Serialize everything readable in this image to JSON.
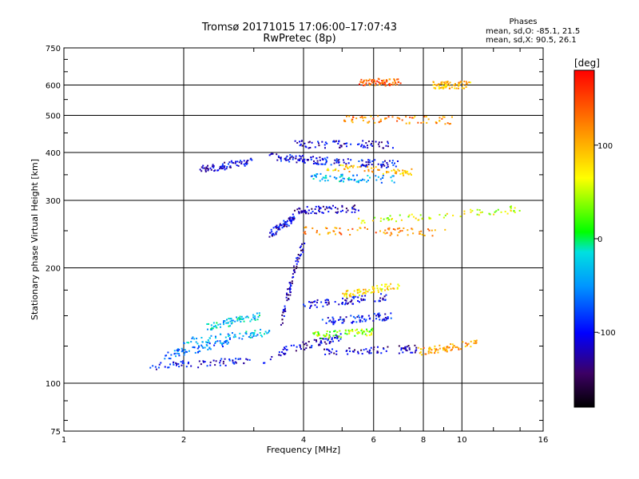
{
  "header": {
    "title_line1": "Tromsø 20171015 17:06:00–17:07:43",
    "title_line2": "RwPretec (8p)"
  },
  "stats": {
    "heading": "Phases",
    "line_o": "mean, sd,O: -85.1, 21.5",
    "line_x": "mean, sd,X:  90.5, 26.1"
  },
  "colorbar": {
    "unit_label": "[deg]",
    "ticks": [
      {
        "value": 100,
        "label": "100"
      },
      {
        "value": 0,
        "label": "0"
      },
      {
        "value": -100,
        "label": "-100"
      }
    ],
    "range": [
      -180,
      180
    ]
  },
  "chart_data": {
    "type": "scatter",
    "xlabel": "Frequency [MHz]",
    "ylabel": "Stationary phase Virtual Height [km]",
    "xscale": "log",
    "yscale": "log",
    "xlim": [
      1,
      16
    ],
    "ylim": [
      75,
      750
    ],
    "xticks": [
      {
        "value": 1,
        "label": "1"
      },
      {
        "value": 2,
        "label": "2"
      },
      {
        "value": 4,
        "label": "4"
      },
      {
        "value": 6,
        "label": "6"
      },
      {
        "value": 8,
        "label": "8"
      },
      {
        "value": 10,
        "label": "10"
      },
      {
        "value": 16,
        "label": "16"
      }
    ],
    "yticks": [
      {
        "value": 75,
        "label": "75"
      },
      {
        "value": 100,
        "label": "100"
      },
      {
        "value": 200,
        "label": "200"
      },
      {
        "value": 300,
        "label": "300"
      },
      {
        "value": 400,
        "label": "400"
      },
      {
        "value": 500,
        "label": "500"
      },
      {
        "value": 600,
        "label": "600"
      },
      {
        "value": 750,
        "label": "750"
      }
    ],
    "grid": true,
    "color_encodes": "phase [deg]",
    "clusters": [
      {
        "x_range": [
          1.6,
          3.4
        ],
        "y_start": 110,
        "y_end": 116,
        "phase": -105
      },
      {
        "x_range": [
          2.0,
          3.3
        ],
        "y_start": 128,
        "y_end": 136,
        "phase": -40
      },
      {
        "x_range": [
          1.8,
          2.6
        ],
        "y_start": 118,
        "y_end": 128,
        "phase": -60
      },
      {
        "x_range": [
          2.3,
          3.1
        ],
        "y_start": 140,
        "y_end": 150,
        "phase": -30
      },
      {
        "x_range": [
          3.4,
          5.0
        ],
        "y_start": 120,
        "y_end": 132,
        "phase": -110
      },
      {
        "x_range": [
          3.5,
          4.0
        ],
        "y_start": 140,
        "y_end": 230,
        "phase": -120
      },
      {
        "x_range": [
          4.0,
          6.5
        ],
        "y_start": 160,
        "y_end": 168,
        "phase": -110
      },
      {
        "x_range": [
          4.5,
          6.8
        ],
        "y_start": 145,
        "y_end": 150,
        "phase": -100
      },
      {
        "x_range": [
          4.2,
          6.0
        ],
        "y_start": 133,
        "y_end": 136,
        "phase": 40
      },
      {
        "x_range": [
          4.5,
          7.8
        ],
        "y_start": 120,
        "y_end": 123,
        "phase": -120
      },
      {
        "x_range": [
          7.8,
          11.0
        ],
        "y_start": 121,
        "y_end": 127,
        "phase": 110
      },
      {
        "x_range": [
          5.0,
          7.0
        ],
        "y_start": 170,
        "y_end": 180,
        "phase": 80
      },
      {
        "x_range": [
          3.3,
          3.8
        ],
        "y_start": 245,
        "y_end": 270,
        "phase": -110
      },
      {
        "x_range": [
          3.8,
          5.5
        ],
        "y_start": 283,
        "y_end": 285,
        "phase": -120
      },
      {
        "x_range": [
          4.0,
          9.0
        ],
        "y_start": 250,
        "y_end": 248,
        "phase": 120
      },
      {
        "x_range": [
          5.5,
          14.0
        ],
        "y_start": 265,
        "y_end": 285,
        "phase": 60
      },
      {
        "x_range": [
          3.8,
          6.8
        ],
        "y_start": 420,
        "y_end": 420,
        "phase": -115
      },
      {
        "x_range": [
          3.3,
          4.5
        ],
        "y_start": 390,
        "y_end": 380,
        "phase": -110
      },
      {
        "x_range": [
          4.5,
          7.0
        ],
        "y_start": 380,
        "y_end": 372,
        "phase": -100
      },
      {
        "x_range": [
          4.2,
          6.8
        ],
        "y_start": 345,
        "y_end": 340,
        "phase": -40
      },
      {
        "x_range": [
          4.6,
          7.5
        ],
        "y_start": 365,
        "y_end": 355,
        "phase": 90
      },
      {
        "x_range": [
          5.0,
          9.5
        ],
        "y_start": 490,
        "y_end": 485,
        "phase": 120
      },
      {
        "x_range": [
          5.5,
          7.0
        ],
        "y_start": 610,
        "y_end": 610,
        "phase": 140
      },
      {
        "x_range": [
          8.5,
          10.5
        ],
        "y_start": 600,
        "y_end": 600,
        "phase": 100
      },
      {
        "x_range": [
          2.2,
          3.0
        ],
        "y_start": 360,
        "y_end": 380,
        "phase": -110
      }
    ]
  }
}
